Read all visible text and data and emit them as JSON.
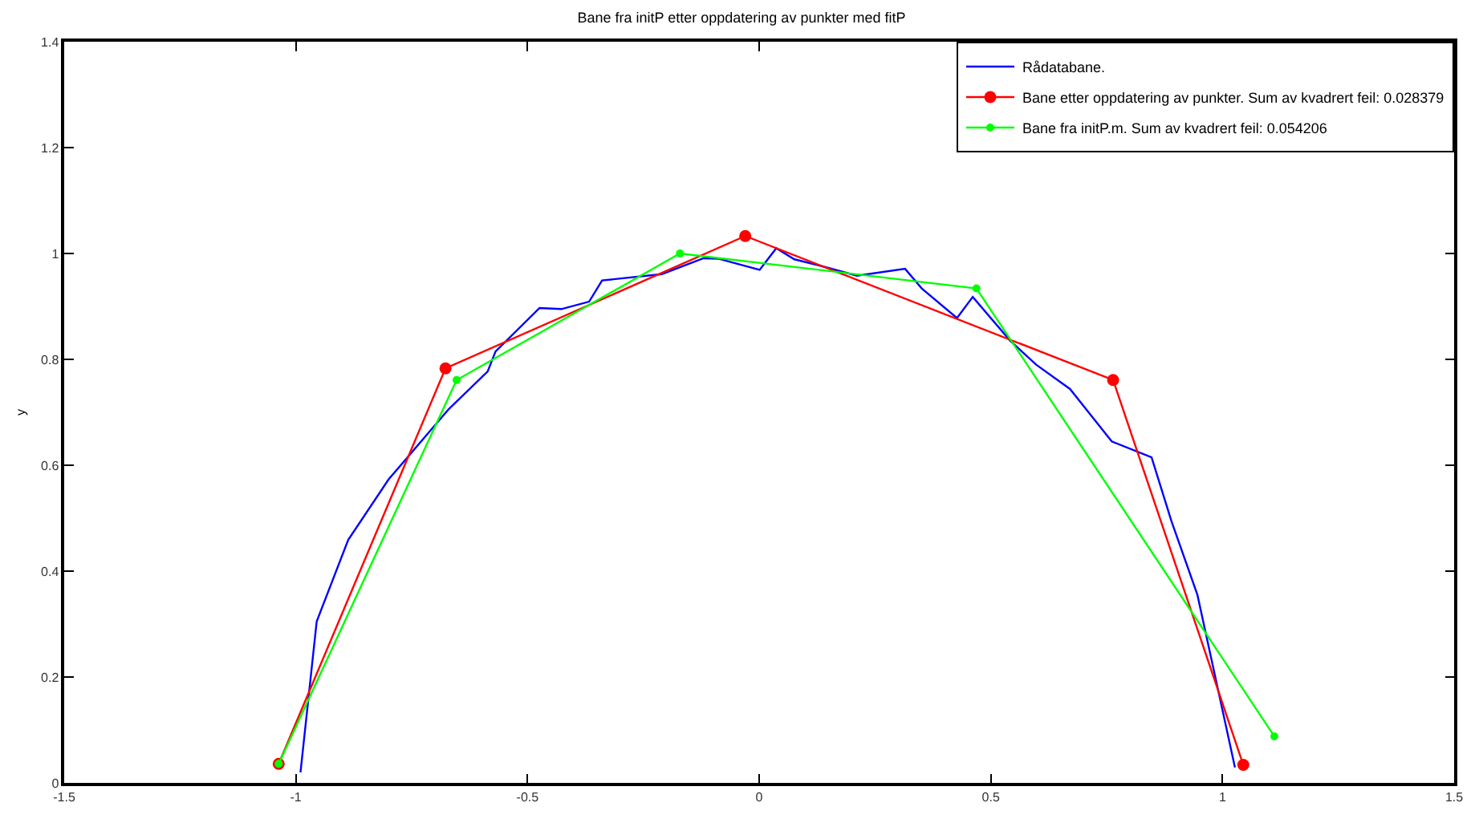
{
  "chart_data": {
    "type": "line",
    "title": "Bane fra initP etter oppdatering av punkter med fitP",
    "ylabel": "y",
    "xlim": [
      -1.5,
      1.5
    ],
    "xticks": [
      -1.5,
      -1,
      -0.5,
      0,
      0.5,
      1,
      1.5
    ],
    "ylim": [
      0,
      1.4
    ],
    "yticks": [
      0,
      0.2,
      0.4,
      0.6,
      0.8,
      1,
      1.2,
      1.4
    ],
    "legend": "top right",
    "series": [
      {
        "name": "Rådatabane.",
        "color": "#0000ff",
        "marker": "none",
        "x": [
          -0.99,
          -0.955,
          -0.887,
          -0.8,
          -0.67,
          -0.586,
          -0.569,
          -0.474,
          -0.427,
          -0.367,
          -0.339,
          -0.21,
          -0.12,
          -0.087,
          0.001,
          0.037,
          0.076,
          0.127,
          0.211,
          0.315,
          0.351,
          0.427,
          0.461,
          0.542,
          0.598,
          0.671,
          0.761,
          0.847,
          0.89,
          0.946,
          1.027
        ],
        "values": [
          0.02,
          0.305,
          0.459,
          0.573,
          0.706,
          0.777,
          0.815,
          0.897,
          0.895,
          0.909,
          0.949,
          0.961,
          0.991,
          0.99,
          0.969,
          1.01,
          0.989,
          0.978,
          0.958,
          0.971,
          0.934,
          0.878,
          0.918,
          0.835,
          0.79,
          0.744,
          0.645,
          0.615,
          0.494,
          0.355,
          0.029
        ]
      },
      {
        "name": "Bane etter oppdatering av punkter. Sum av kvadrert feil: 0.028379",
        "color": "#ff0000",
        "marker": "circle",
        "x": [
          -1.037,
          -0.677,
          -0.03,
          0.764,
          1.045
        ],
        "values": [
          0.036,
          0.783,
          1.033,
          0.761,
          0.034
        ]
      },
      {
        "name": "Bane fra initP.m. Sum av kvadrert feil: 0.054206",
        "color": "#00ff00",
        "marker": "circle",
        "x": [
          -1.037,
          -0.653,
          -0.171,
          0.469,
          1.112
        ],
        "values": [
          0.036,
          0.761,
          1.0,
          0.934,
          0.088
        ]
      }
    ]
  }
}
